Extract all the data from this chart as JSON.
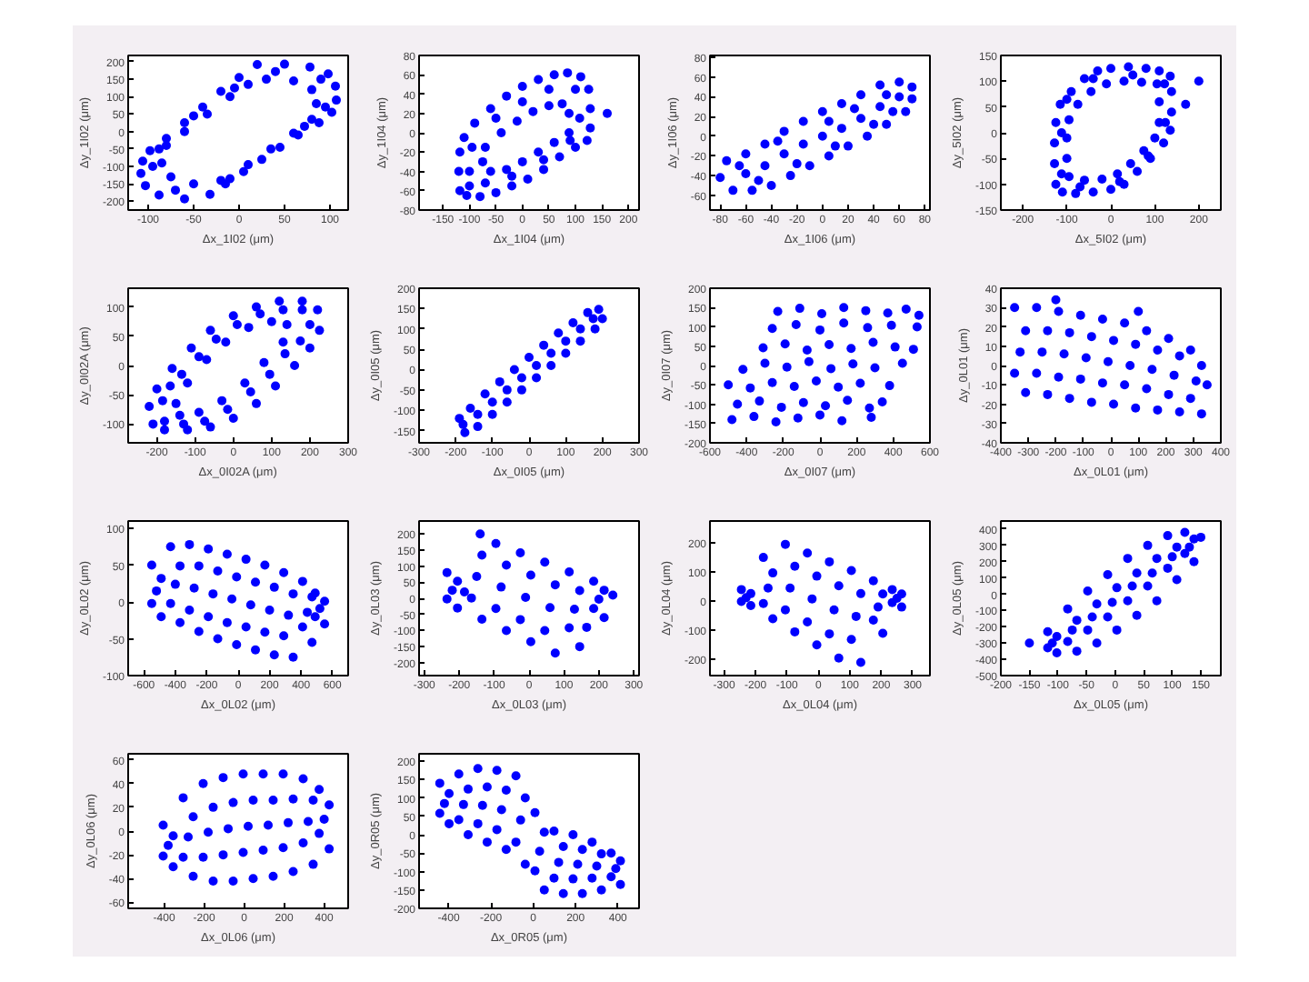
{
  "chart_data": [
    {
      "type": "scatter",
      "xlabel": "Δx_1I02 (μm)",
      "ylabel": "Δy_1I02 (μm)",
      "xlim": [
        -122,
        120
      ],
      "xticks": [
        -100,
        -50,
        0,
        50,
        100
      ],
      "ylim": [
        -225,
        218
      ],
      "yticks": [
        -200,
        -150,
        -100,
        -50,
        0,
        50,
        100,
        150,
        200
      ],
      "marker": "circle",
      "color": "#0000ff",
      "x": [
        20,
        50,
        78,
        98,
        106,
        107,
        102,
        88,
        65,
        45,
        25,
        5,
        -15,
        -32,
        -60,
        -88,
        -103,
        -108,
        -106,
        -98,
        -80,
        -60,
        -40,
        -20,
        0,
        30,
        60,
        80,
        85,
        80,
        60,
        35,
        10,
        -20,
        -50,
        -75,
        -85,
        -80,
        -60,
        -35,
        -10,
        10,
        40,
        90,
        95,
        72,
        -10,
        -70,
        -95,
        -88,
        -50,
        -5
      ],
      "values": [
        192,
        193,
        185,
        165,
        130,
        90,
        55,
        25,
        -10,
        -45,
        -80,
        -115,
        -150,
        -180,
        -193,
        -182,
        -155,
        -120,
        -85,
        -55,
        -20,
        25,
        70,
        115,
        155,
        150,
        145,
        120,
        80,
        35,
        -5,
        -50,
        -95,
        -140,
        -150,
        -130,
        -90,
        -40,
        0,
        50,
        100,
        135,
        172,
        150,
        70,
        15,
        -135,
        -168,
        -100,
        -50,
        45,
        125
      ]
    },
    {
      "type": "scatter",
      "xlabel": "Δx_1I04 (μm)",
      "ylabel": "Δy_1I04 (μm)",
      "xlim": [
        -195,
        220
      ],
      "xticks": [
        -150,
        -100,
        -50,
        0,
        50,
        100,
        150,
        200
      ],
      "ylim": [
        -80,
        80
      ],
      "yticks": [
        -80,
        -60,
        -40,
        -20,
        0,
        20,
        40,
        60,
        80
      ],
      "marker": "circle",
      "color": "#0000ff",
      "x": [
        -118,
        -120,
        -118,
        -110,
        -90,
        -60,
        -30,
        0,
        30,
        60,
        85,
        110,
        125,
        128,
        128,
        122,
        100,
        70,
        40,
        10,
        -20,
        -50,
        -80,
        -105,
        -75,
        -70,
        -40,
        -10,
        20,
        50,
        75,
        88,
        88,
        60,
        30,
        0,
        -30,
        -60,
        -100,
        -95,
        -50,
        0,
        50,
        100,
        108,
        90,
        40,
        -20,
        -70,
        -100,
        160
      ],
      "values": [
        -60,
        -40,
        -20,
        -5,
        10,
        25,
        38,
        48,
        55,
        60,
        62,
        58,
        45,
        25,
        5,
        -8,
        -15,
        -25,
        -38,
        -48,
        -55,
        -62,
        -66,
        -65,
        -30,
        -15,
        0,
        12,
        22,
        28,
        30,
        20,
        0,
        -10,
        -20,
        -30,
        -38,
        -40,
        -40,
        -15,
        15,
        32,
        45,
        45,
        15,
        -8,
        -28,
        -45,
        -52,
        -55,
        20
      ]
    },
    {
      "type": "scatter",
      "xlabel": "Δx_1I06 (μm)",
      "ylabel": "Δy_1I06 (μm)",
      "xlim": [
        -88,
        84
      ],
      "xticks": [
        -80,
        -60,
        -40,
        -20,
        0,
        20,
        40,
        60,
        80
      ],
      "ylim": [
        -75,
        82
      ],
      "yticks": [
        -60,
        -40,
        -20,
        0,
        20,
        40,
        60,
        80
      ],
      "marker": "circle",
      "color": "#0000ff",
      "x": [
        -75,
        -60,
        -45,
        -30,
        -15,
        0,
        15,
        30,
        45,
        60,
        70,
        -70,
        -55,
        -40,
        -25,
        -10,
        5,
        20,
        35,
        50,
        65,
        -80,
        -60,
        -45,
        -30,
        -15,
        0,
        15,
        30,
        45,
        60,
        70,
        -50,
        -20,
        10,
        40,
        55,
        -65,
        -35,
        5,
        25,
        50
      ],
      "values": [
        -25,
        -18,
        -8,
        5,
        15,
        25,
        33,
        42,
        52,
        55,
        50,
        -55,
        -55,
        -50,
        -40,
        -30,
        -20,
        -10,
        0,
        12,
        25,
        -42,
        -38,
        -30,
        -18,
        -8,
        0,
        8,
        18,
        30,
        40,
        38,
        -45,
        -28,
        -10,
        12,
        25,
        -30,
        -5,
        15,
        28,
        42
      ]
    },
    {
      "type": "scatter",
      "xlabel": "Δx_5I02 (μm)",
      "ylabel": "Δy_5I02 (μm)",
      "xlim": [
        -250,
        250
      ],
      "xticks": [
        -200,
        -100,
        0,
        100,
        200
      ],
      "ylim": [
        -150,
        150
      ],
      "yticks": [
        -150,
        -100,
        -50,
        0,
        50,
        100,
        150
      ],
      "marker": "circle",
      "color": "#0000ff",
      "x": [
        -125,
        -128,
        -128,
        -125,
        -115,
        -90,
        -60,
        -30,
        0,
        40,
        80,
        110,
        135,
        138,
        138,
        135,
        120,
        90,
        60,
        30,
        0,
        -40,
        -80,
        -110,
        -95,
        -100,
        -100,
        -95,
        -75,
        -45,
        -10,
        30,
        70,
        105,
        110,
        110,
        100,
        75,
        45,
        15,
        -20,
        -60,
        -112,
        -112,
        -100,
        -40,
        50,
        122,
        124,
        85,
        20,
        -70,
        200,
        170
      ],
      "values": [
        -100,
        -60,
        -20,
        20,
        55,
        80,
        105,
        120,
        125,
        128,
        125,
        120,
        110,
        80,
        40,
        5,
        -20,
        -50,
        -75,
        -100,
        -110,
        -115,
        -118,
        -115,
        -85,
        -50,
        -10,
        25,
        55,
        80,
        95,
        100,
        98,
        95,
        60,
        20,
        -10,
        -35,
        -60,
        -80,
        -90,
        -92,
        -80,
        0,
        65,
        105,
        112,
        95,
        20,
        -45,
        -95,
        -105,
        100,
        55
      ]
    },
    {
      "type": "scatter",
      "xlabel": "Δx_0I02A (μm)",
      "ylabel": "Δy_0I02A (μm)",
      "xlim": [
        -275,
        300
      ],
      "xticks": [
        -200,
        -100,
        0,
        100,
        200,
        300
      ],
      "ylim": [
        -132,
        132
      ],
      "yticks": [
        -100,
        -50,
        0,
        50,
        100
      ],
      "marker": "circle",
      "color": "#0000ff",
      "x": [
        -210,
        -220,
        -200,
        -160,
        -110,
        -60,
        0,
        60,
        120,
        180,
        220,
        225,
        200,
        160,
        110,
        60,
        0,
        -60,
        -120,
        -180,
        -150,
        -120,
        -70,
        -20,
        40,
        100,
        140,
        130,
        80,
        30,
        -30,
        -90,
        -140,
        -185,
        -165,
        -135,
        -90,
        -45,
        10,
        70,
        130,
        180,
        200,
        175,
        135,
        95,
        45,
        -15,
        -75,
        -130,
        -180
      ],
      "values": [
        -100,
        -70,
        -40,
        -5,
        30,
        60,
        85,
        100,
        110,
        110,
        95,
        60,
        30,
        0,
        -35,
        -65,
        -90,
        -105,
        -110,
        -110,
        -65,
        -30,
        10,
        40,
        65,
        75,
        70,
        40,
        5,
        -30,
        -60,
        -80,
        -85,
        -60,
        -35,
        -15,
        15,
        45,
        70,
        88,
        95,
        95,
        70,
        42,
        20,
        -15,
        -45,
        -75,
        -95,
        -100,
        -95
      ]
    },
    {
      "type": "scatter",
      "xlabel": "Δx_0I05 (μm)",
      "ylabel": "Δy_0I05 (μm)",
      "xlim": [
        -300,
        300
      ],
      "xticks": [
        -300,
        -200,
        -100,
        0,
        100,
        200,
        300
      ],
      "ylim": [
        -180,
        200
      ],
      "yticks": [
        -150,
        -100,
        -50,
        0,
        50,
        100,
        150,
        200
      ],
      "marker": "circle",
      "color": "#0000ff",
      "x": [
        -190,
        -160,
        -120,
        -80,
        -40,
        0,
        40,
        80,
        120,
        160,
        190,
        -175,
        -140,
        -100,
        -60,
        -20,
        20,
        60,
        100,
        140,
        180,
        200,
        -180,
        -140,
        -100,
        -60,
        -20,
        20,
        60,
        100,
        140,
        175
      ],
      "values": [
        -120,
        -95,
        -60,
        -30,
        0,
        30,
        60,
        90,
        115,
        140,
        148,
        -155,
        -140,
        -110,
        -80,
        -50,
        -20,
        10,
        40,
        70,
        100,
        125,
        -135,
        -110,
        -80,
        -50,
        -20,
        10,
        40,
        70,
        100,
        125
      ]
    },
    {
      "type": "scatter",
      "xlabel": "Δx_0I07 (μm)",
      "ylabel": "Δy_0I07 (μm)",
      "xlim": [
        -600,
        600
      ],
      "xticks": [
        -600,
        -400,
        -200,
        0,
        200,
        400,
        600
      ],
      "ylim": [
        -200,
        200
      ],
      "yticks": [
        -200,
        -150,
        -100,
        -50,
        0,
        50,
        100,
        150,
        200
      ],
      "marker": "circle",
      "color": "#0000ff",
      "x": [
        -480,
        -360,
        -240,
        -120,
        0,
        120,
        280,
        -450,
        -330,
        -210,
        -90,
        30,
        150,
        270,
        340,
        -500,
        -380,
        -260,
        -140,
        -20,
        100,
        220,
        380,
        -420,
        -300,
        -180,
        -60,
        60,
        180,
        300,
        450,
        -310,
        -190,
        -70,
        50,
        170,
        290,
        410,
        510,
        -260,
        -130,
        0,
        130,
        260,
        390,
        530,
        -230,
        -110,
        10,
        130,
        250,
        370,
        470,
        540
      ],
      "values": [
        -140,
        -132,
        -146,
        -136,
        -128,
        -143,
        -134,
        -100,
        -92,
        -108,
        -96,
        -104,
        -90,
        -110,
        -94,
        -50,
        -58,
        -44,
        -54,
        -40,
        -56,
        -46,
        -52,
        -10,
        6,
        -4,
        10,
        -8,
        4,
        -6,
        6,
        46,
        56,
        40,
        54,
        44,
        60,
        48,
        42,
        96,
        106,
        92,
        110,
        98,
        104,
        100,
        140,
        148,
        134,
        150,
        142,
        136,
        146,
        130
      ]
    },
    {
      "type": "scatter",
      "xlabel": "Δx_0L01 (μm)",
      "ylabel": "Δy_0L01 (μm)",
      "xlim": [
        -400,
        400
      ],
      "xticks": [
        -400,
        -300,
        -200,
        -100,
        0,
        100,
        200,
        300,
        400
      ],
      "ylim": [
        -40,
        40
      ],
      "yticks": [
        -40,
        -30,
        -20,
        -10,
        0,
        10,
        20,
        30,
        40
      ],
      "marker": "circle",
      "color": "#0000ff",
      "x": [
        -350,
        -310,
        -330,
        -350,
        -310,
        -270,
        -230,
        -250,
        -270,
        -230,
        -190,
        -150,
        -170,
        -190,
        -150,
        -110,
        -70,
        -90,
        -110,
        -70,
        -30,
        10,
        -10,
        -30,
        10,
        50,
        90,
        70,
        50,
        90,
        130,
        170,
        150,
        130,
        170,
        210,
        250,
        230,
        210,
        250,
        290,
        330,
        310,
        290,
        330,
        -200,
        100,
        350
      ],
      "values": [
        30,
        18,
        7,
        -4,
        -14,
        30,
        18,
        7,
        -4,
        -15,
        28,
        17,
        6,
        -6,
        -17,
        26,
        15,
        4,
        -7,
        -19,
        24,
        13,
        2,
        -9,
        -20,
        22,
        11,
        0,
        -10,
        -22,
        18,
        8,
        -2,
        -12,
        -23,
        14,
        5,
        -5,
        -15,
        -24,
        8,
        0,
        -8,
        -17,
        -25,
        34,
        28,
        -10
      ]
    },
    {
      "type": "scatter",
      "xlabel": "Δx_0L02 (μm)",
      "ylabel": "Δy_0L02 (μm)",
      "xlim": [
        -700,
        700
      ],
      "xticks": [
        -600,
        -400,
        -200,
        0,
        200,
        400,
        600
      ],
      "ylim": [
        -100,
        110
      ],
      "yticks": [
        -100,
        -50,
        0,
        50,
        100
      ],
      "marker": "circle",
      "color": "#0000ff",
      "x": [
        -550,
        -490,
        -520,
        -550,
        -490,
        -430,
        -370,
        -400,
        -430,
        -370,
        -310,
        -250,
        -280,
        -310,
        -250,
        -190,
        -130,
        -160,
        -190,
        -130,
        -70,
        -10,
        -40,
        -70,
        -10,
        50,
        110,
        80,
        50,
        110,
        170,
        230,
        200,
        170,
        230,
        290,
        350,
        320,
        290,
        350,
        410,
        470,
        440,
        410,
        470,
        490,
        550,
        520,
        490,
        550
      ],
      "values": [
        50,
        32,
        15,
        -2,
        -20,
        75,
        49,
        24,
        -2,
        -28,
        78,
        49,
        19,
        -11,
        -40,
        72,
        42,
        11,
        -20,
        -50,
        65,
        34,
        4,
        -28,
        -58,
        58,
        27,
        -4,
        -34,
        -65,
        50,
        20,
        -11,
        -41,
        -72,
        40,
        11,
        -18,
        -46,
        -75,
        28,
        7,
        -14,
        -34,
        -55,
        12,
        1,
        -9,
        -20,
        -30
      ]
    },
    {
      "type": "scatter",
      "xlabel": "Δx_0L03 (μm)",
      "ylabel": "Δy_0L03 (μm)",
      "xlim": [
        -315,
        315
      ],
      "xticks": [
        -300,
        -200,
        -100,
        0,
        100,
        200,
        300
      ],
      "ylim": [
        -240,
        240
      ],
      "yticks": [
        -200,
        -150,
        -100,
        -50,
        0,
        50,
        100,
        150,
        200
      ],
      "marker": "circle",
      "color": "#0000ff",
      "x": [
        -235,
        -205,
        -220,
        -235,
        -205,
        -140,
        -135,
        -150,
        -165,
        -135,
        -95,
        -65,
        -80,
        -95,
        -65,
        -25,
        5,
        -10,
        -25,
        5,
        45,
        75,
        60,
        45,
        75,
        115,
        145,
        130,
        115,
        145,
        185,
        215,
        200,
        185,
        215,
        240,
        165,
        -185
      ],
      "values": [
        80,
        53,
        25,
        -2,
        -30,
        200,
        134,
        68,
        1,
        -65,
        170,
        103,
        35,
        -32,
        -100,
        141,
        72,
        3,
        -66,
        -135,
        112,
        42,
        -29,
        -100,
        -170,
        82,
        24,
        -34,
        -92,
        -150,
        53,
        25,
        -3,
        -32,
        -60,
        10,
        -90,
        20
      ]
    },
    {
      "type": "scatter",
      "xlabel": "Δx_0L04 (μm)",
      "ylabel": "Δy_0L04 (μm)",
      "xlim": [
        -345,
        355
      ],
      "xticks": [
        -300,
        -200,
        -100,
        0,
        100,
        200,
        300
      ],
      "ylim": [
        -255,
        275
      ],
      "yticks": [
        -200,
        -100,
        0,
        100,
        200
      ],
      "marker": "circle",
      "color": "#0000ff",
      "x": [
        -245,
        -215,
        -230,
        -245,
        -215,
        -175,
        -145,
        -160,
        -175,
        -145,
        -105,
        -75,
        -90,
        -105,
        -75,
        -35,
        -5,
        -20,
        -35,
        -5,
        35,
        65,
        50,
        35,
        65,
        105,
        135,
        120,
        105,
        135,
        175,
        205,
        190,
        175,
        205,
        235,
        265,
        250,
        235,
        265
      ],
      "values": [
        40,
        26,
        12,
        -1,
        -15,
        150,
        97,
        45,
        -8,
        -60,
        195,
        120,
        45,
        -30,
        -105,
        165,
        86,
        8,
        -71,
        -150,
        135,
        53,
        -30,
        -112,
        -195,
        105,
        26,
        -52,
        -131,
        -210,
        70,
        25,
        -20,
        -65,
        -110,
        40,
        25,
        10,
        -5,
        -20
      ]
    },
    {
      "type": "scatter",
      "xlabel": "Δx_0L05 (μm)",
      "ylabel": "Δy_0L05 (μm)",
      "xlim": [
        -200,
        185
      ],
      "xticks": [
        -200,
        -150,
        -100,
        -50,
        0,
        50,
        100,
        150
      ],
      "ylim": [
        -500,
        450
      ],
      "yticks": [
        -500,
        -400,
        -300,
        -200,
        -100,
        0,
        100,
        200,
        300,
        400
      ],
      "marker": "circle",
      "color": "#0000ff",
      "x": [
        -118,
        -102,
        -110,
        -118,
        -102,
        -83,
        -67,
        -75,
        -83,
        -67,
        -48,
        -32,
        -40,
        -48,
        -32,
        -13,
        3,
        -5,
        -13,
        3,
        22,
        38,
        30,
        22,
        38,
        57,
        73,
        65,
        57,
        73,
        92,
        108,
        100,
        92,
        108,
        122,
        138,
        130,
        122,
        138,
        -150,
        150
      ],
      "values": [
        -230,
        -260,
        -300,
        -330,
        -360,
        -90,
        -160,
        -220,
        -290,
        -350,
        20,
        -60,
        -140,
        -220,
        -300,
        120,
        40,
        -50,
        -140,
        -220,
        220,
        130,
        50,
        -40,
        -130,
        300,
        220,
        130,
        50,
        -40,
        360,
        290,
        230,
        160,
        90,
        380,
        340,
        290,
        250,
        200,
        -300,
        350
      ]
    },
    {
      "type": "scatter",
      "xlabel": "Δx_0L06 (μm)",
      "ylabel": "Δy_0L06 (μm)",
      "xlim": [
        -580,
        520
      ],
      "xticks": [
        -400,
        -200,
        0,
        200,
        400
      ],
      "ylim": [
        -65,
        65
      ],
      "yticks": [
        -60,
        -40,
        -20,
        0,
        20,
        40,
        60
      ],
      "marker": "circle",
      "color": "#0000ff",
      "x": [
        -405,
        -355,
        -380,
        -405,
        -355,
        -305,
        -255,
        -280,
        -305,
        -255,
        -205,
        -155,
        -180,
        -205,
        -155,
        -105,
        -55,
        -80,
        -105,
        -55,
        -5,
        45,
        20,
        -5,
        45,
        95,
        145,
        120,
        95,
        145,
        195,
        245,
        220,
        195,
        245,
        295,
        345,
        320,
        295,
        345,
        375,
        425,
        400,
        375,
        425
      ],
      "values": [
        5,
        -4,
        -12,
        -21,
        -30,
        28,
        12,
        -5,
        -22,
        -38,
        40,
        20,
        -1,
        -22,
        -42,
        45,
        24,
        2,
        -20,
        -42,
        48,
        26,
        4,
        -18,
        -40,
        48,
        26,
        5,
        -16,
        -38,
        48,
        27,
        7,
        -14,
        -34,
        44,
        26,
        8,
        -10,
        -28,
        35,
        22,
        10,
        -2,
        -15
      ]
    },
    {
      "type": "scatter",
      "xlabel": "Δx_0R05 (μm)",
      "ylabel": "Δy_0R05 (μm)",
      "xlim": [
        -540,
        500
      ],
      "xticks": [
        -400,
        -200,
        0,
        200,
        400
      ],
      "ylim": [
        -200,
        220
      ],
      "yticks": [
        -200,
        -150,
        -100,
        -50,
        0,
        50,
        100,
        150,
        200
      ],
      "marker": "circle",
      "color": "#0000ff",
      "x": [
        -442,
        -398,
        -420,
        -442,
        -398,
        -352,
        -308,
        -330,
        -352,
        -308,
        -262,
        -218,
        -240,
        -262,
        -218,
        -172,
        -128,
        -150,
        -172,
        -128,
        -82,
        -38,
        -60,
        -82,
        -38,
        8,
        52,
        30,
        8,
        52,
        98,
        142,
        120,
        98,
        142,
        188,
        232,
        210,
        188,
        232,
        278,
        322,
        300,
        278,
        322,
        368,
        412,
        390,
        368,
        412
      ],
      "values": [
        140,
        112,
        85,
        58,
        30,
        165,
        124,
        82,
        41,
        0,
        180,
        130,
        80,
        30,
        -20,
        175,
        121,
        68,
        14,
        -40,
        160,
        100,
        40,
        -20,
        -80,
        60,
        7,
        -45,
        -98,
        -150,
        10,
        -32,
        -75,
        -118,
        -160,
        0,
        -40,
        -80,
        -120,
        -160,
        -20,
        -52,
        -85,
        -118,
        -150,
        -50,
        -71,
        -92,
        -114,
        -135
      ]
    }
  ]
}
